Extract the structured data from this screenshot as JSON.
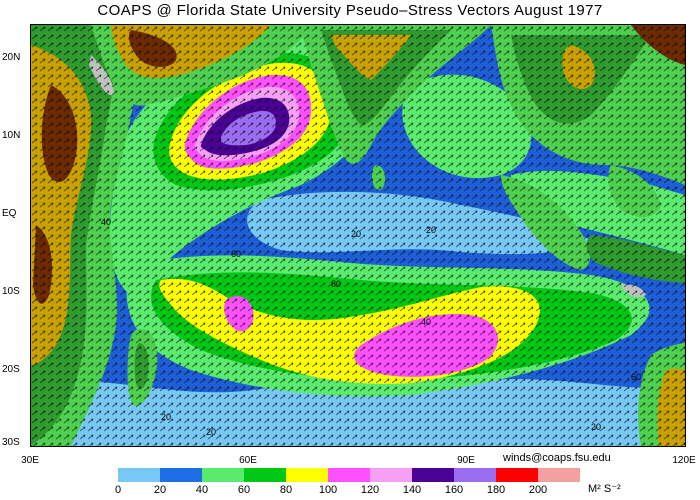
{
  "title": "COAPS @ Florida State University Pseudo–Stress Vectors  August 1977",
  "credit": "winds@coaps.fsu.edu",
  "lat_labels": [
    "20N",
    "10N",
    "EQ",
    "10S",
    "20S",
    "30S"
  ],
  "lon_labels": [
    "30E",
    "60E",
    "90E",
    "120E"
  ],
  "colorbar": {
    "ticks": [
      "0",
      "20",
      "40",
      "60",
      "80",
      "100",
      "120",
      "140",
      "160",
      "180",
      "200"
    ],
    "units": "M² S⁻²",
    "colors": [
      "#78c8f5",
      "#1e6fe6",
      "#5aeb6e",
      "#00c814",
      "#ffff00",
      "#ff50ff",
      "#f5a0f5",
      "#4b0096",
      "#9a6cf0",
      "#ff0000",
      "#f5a0a0"
    ]
  },
  "contour_labels": [
    "40",
    "60",
    "80",
    "20",
    "20",
    "60",
    "40",
    "20",
    "20",
    "20"
  ],
  "colors": {
    "ocean_low": "#78c8f5",
    "ocean": "#1e5fd8",
    "land_high": "#6b2a00",
    "land_mid": "#c8a000",
    "land_low": "#2f9a2f",
    "land_green": "#4fcf4f",
    "ice_grey": "#c0c0c0"
  }
}
